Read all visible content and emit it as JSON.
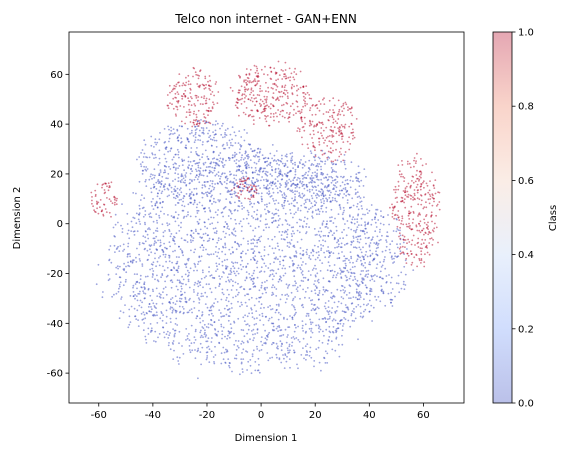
{
  "chart_data": {
    "type": "scatter",
    "title": "Telco non internet - GAN+ENN",
    "xlabel": "Dimension 1",
    "ylabel": "Dimension 2",
    "xlim": [
      -71,
      75
    ],
    "ylim": [
      -72,
      77
    ],
    "xticks": [
      -60,
      -40,
      -20,
      0,
      20,
      40,
      60
    ],
    "yticks": [
      -60,
      -40,
      -20,
      0,
      20,
      40,
      60
    ],
    "grid": false,
    "colormap": "coolwarm",
    "point_alpha": 0.5,
    "colorbar": {
      "label": "Class",
      "range": [
        0.0,
        1.0
      ],
      "ticks": [
        "0.0",
        "0.2",
        "0.4",
        "0.6",
        "0.8",
        "1.0"
      ],
      "stops": [
        "#3b4cc0",
        "#7b9ff9",
        "#c0d4f5",
        "#f2cbb7",
        "#ee8468",
        "#b40426"
      ]
    },
    "class_colors": {
      "0": "#3b4cc0",
      "1": "#b40426"
    },
    "regions": [
      {
        "class": 0,
        "cx": -5,
        "cy": -15,
        "rx": 55,
        "ry": 48,
        "n": 2600
      },
      {
        "class": 0,
        "cx": -22,
        "cy": 25,
        "rx": 25,
        "ry": 18,
        "n": 420
      },
      {
        "class": 0,
        "cx": 15,
        "cy": 18,
        "rx": 25,
        "ry": 12,
        "n": 300
      },
      {
        "class": 0,
        "cx": 42,
        "cy": -15,
        "rx": 14,
        "ry": 22,
        "n": 180
      },
      {
        "class": 1,
        "cx": -25,
        "cy": 50,
        "rx": 10,
        "ry": 14,
        "n": 170
      },
      {
        "class": 1,
        "cx": 4,
        "cy": 52,
        "rx": 16,
        "ry": 14,
        "n": 300
      },
      {
        "class": 1,
        "cx": 25,
        "cy": 38,
        "rx": 12,
        "ry": 14,
        "n": 190
      },
      {
        "class": 1,
        "cx": 57,
        "cy": 5,
        "rx": 10,
        "ry": 24,
        "n": 300
      },
      {
        "class": 1,
        "cx": -58,
        "cy": 10,
        "rx": 6,
        "ry": 8,
        "n": 60
      },
      {
        "class": 1,
        "cx": -6,
        "cy": 14,
        "rx": 5,
        "ry": 5,
        "n": 50
      }
    ]
  }
}
